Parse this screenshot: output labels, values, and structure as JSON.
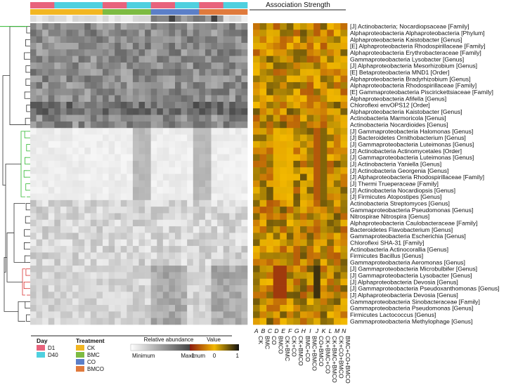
{
  "chart_data": {
    "type": "heatmap",
    "title": "Association Strength",
    "annotation": {
      "day_row": [
        "D1",
        "D40",
        "D40",
        "D1",
        "D40",
        "D1",
        "D40",
        "D1",
        "D40"
      ],
      "treatment_row": [
        "CK",
        "CK",
        "CK",
        "BMC",
        "BMC",
        "CO",
        "CO",
        "BMCO",
        "BMCO"
      ]
    },
    "column_letters": [
      "A",
      "B",
      "C",
      "D",
      "E",
      "F",
      "G",
      "H",
      "I",
      "J",
      "K",
      "L",
      "M",
      "N"
    ],
    "column_labels": [
      "CK",
      "BMC",
      "CO",
      "BMCO",
      "CK+BMC",
      "CK+CO",
      "CK+BMCO",
      "BMC+CO",
      "BMC+BMCO",
      "CO+BMCO",
      "CK+BMC+CO",
      "CK+BMC+BMCO",
      "CK+CO+BMCO",
      "BMC+CO+BMCO"
    ],
    "row_labels": [
      "[J] Actinobacteria; Nocardiopsaceae [Family]",
      "Alphaproteobacteria Alphaproteobacteria [Phylum]",
      "Alphaproteobacteria Kaistobacter [Genus]",
      "[E] Alphaproteobacteria Rhodospirillaceae [Family]",
      "Alphaproteobacteria Erythrobacteraceae [Family]",
      "Gammaproteobacteria Lysobacter [Genus]",
      "[J] Alphaproteobacteria Mesorhizobium [Genus]",
      "[E] Betaproteobacteria MND1 [Order]",
      "Alphaproteobacteria Bradyrhizobium [Genus]",
      "Alphaproteobacteria Rhodospirillaceae [Family]",
      "[E] Gammaproteobacteria Piscirickettsiaceae [Family]",
      "Alphaproteobacteria Afifella [Genus]",
      "Chloroflexi envOPS12 [Order]",
      "Alphaproteobacteria Kaistobacter [Genus]",
      "Actinobacteria Marmoricola [Genus]",
      "Actinobacteria Nocardioides [Genus]",
      "[J] Gammaproteobacteria Halomonas [Genus]",
      "[J] Bacteroidetes Ornithobacterium [Genus]",
      "[J] Gammaproteobacteria Luteimonas [Genus]",
      "[J] Actinobacteria Actinomycetales [Order]",
      "[J] Gammaproteobacteria Luteimonas [Genus]",
      "[J] Actinobacteria Yaniella [Genus]",
      "[J] Actinobacteria Georgenia [Genus]",
      "[J] Alphaproteobacteria Rhodospirillaceae [Family]",
      "[J] Thermi Trueperaceae [Family]",
      "[J] Actinobacteria Nocardiopsis [Genus]",
      "[J] Firmicutes Atopostipes [Genus]",
      "Actinobacteria Streptomyces [Genus]",
      "Gammaproteobacteria Pseudomonas [Genus]",
      "Nitrospirae Nitrospira [Genus]",
      "Alphaproteobacteria Caulobacteraceae [Family]",
      "Bacteroidetes Flavobacterium [Genus]",
      "Gammaproteobacteria Escherichia [Genus]",
      "Chloroflexi SHA-31 [Family]",
      "Actinobacteria Actinocorallia [Genus]",
      "Firmicutes Bacillus [Genus]",
      "Gammaproteobacteria Aeromonas [Genus]",
      "[J] Gammaproteobacteria Microbulbifer [Genus]",
      "[J] Gammaproteobacteria Lysobacter [Genus]",
      "[J] Alphaproteobacteria Devosia [Genus]",
      "[J] Gammaproteobacteria Pseudoxanthomonas [Genus]",
      "[J] Alphaproteobacteria Devosia [Genus]",
      "Gammaproteobacteria Sinobacteraceae [Family]",
      "Gammaproteobacteria Pseudomonas [Genus]",
      "Firmicutes Lactococcus [Genus]",
      "Gammaproteobacteria Methylophage [Genus]"
    ],
    "association_scale": [
      -1,
      1
    ],
    "relative_abundance_scale": [
      "Minimum",
      "Maximum"
    ],
    "colors": {
      "D1": "#e8637c",
      "D40": "#4fd0df",
      "CK": "#f2b622",
      "BMC": "#7dbb42",
      "CO": "#5b7fc8",
      "BMCO": "#e07a3c",
      "assoc_low": "#8b1a10",
      "assoc_mid": "#f2b800",
      "assoc_high": "#111111"
    }
  },
  "legend": {
    "day_title": "Day",
    "day_items": [
      "D1",
      "D40"
    ],
    "treatment_title": "Treatment",
    "treatment_items": [
      "CK",
      "BMC",
      "CO",
      "BMCO"
    ],
    "abundance_title": "Relative abundance",
    "abundance_min": "Minimum",
    "abundance_max": "Maximum",
    "value_title": "Value",
    "value_ticks": [
      "-1",
      "0",
      "1"
    ]
  }
}
